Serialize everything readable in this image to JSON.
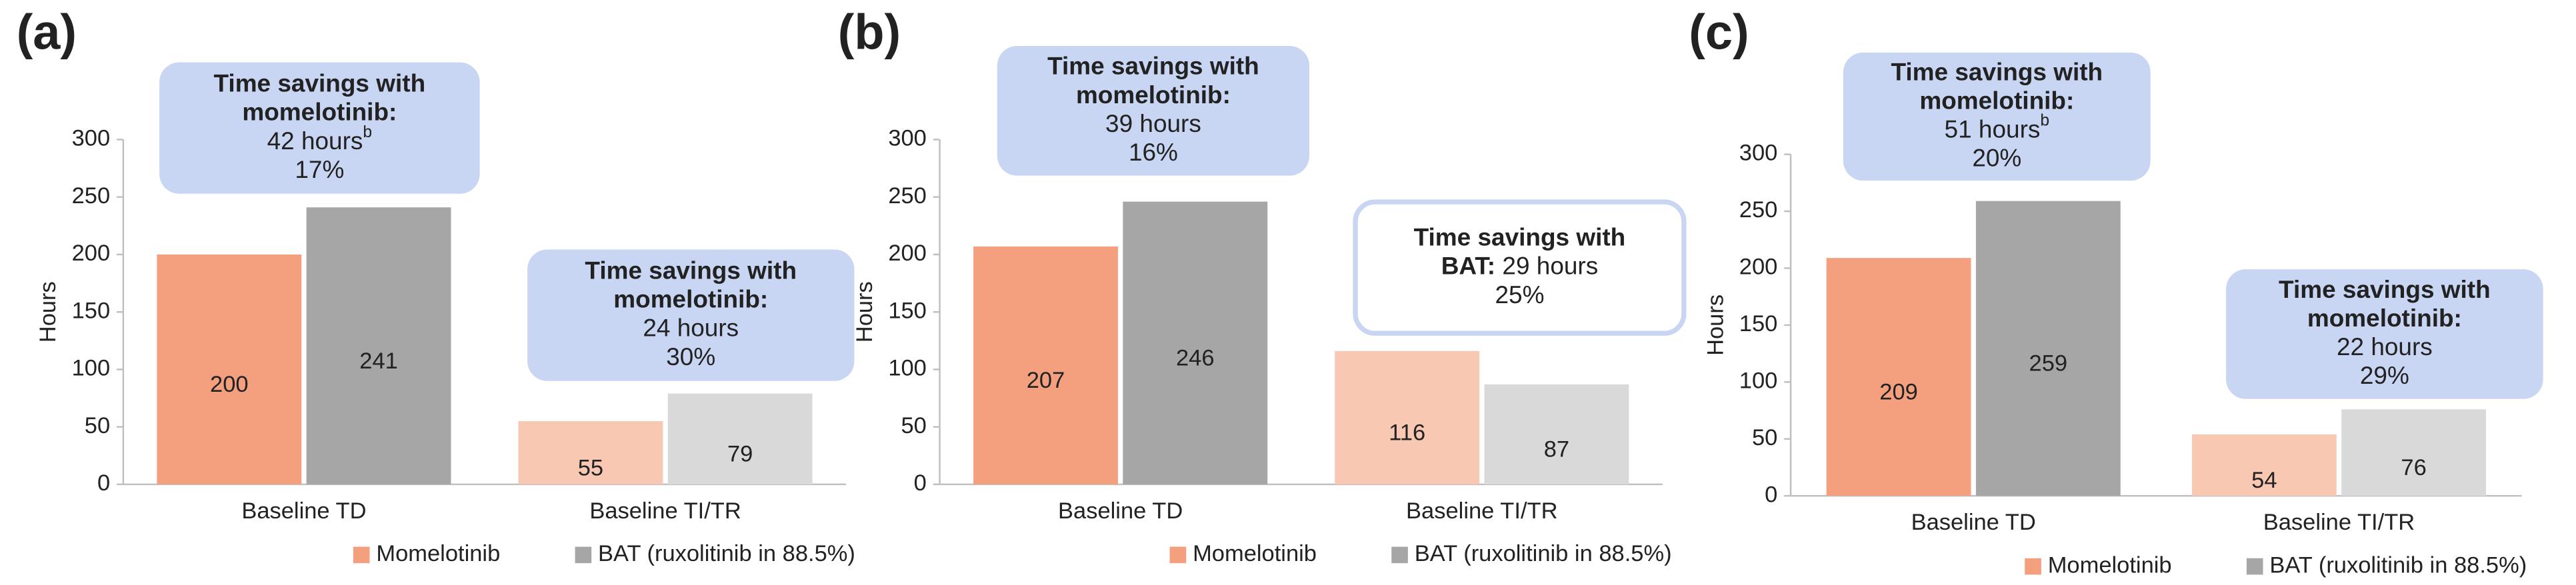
{
  "chart_data": [
    {
      "type": "bar",
      "panel_label": "(a)",
      "y_label": "Hours",
      "categories": [
        "Baseline TD",
        "Baseline TI/TR"
      ],
      "ylim": [
        0,
        300
      ],
      "yticks": [
        0,
        50,
        100,
        150,
        200,
        250,
        300
      ],
      "series": [
        {
          "name": "Momelotinib",
          "color": "#f4a07f",
          "colors": [
            "#f4a07f",
            "#f9c8b3"
          ],
          "values": [
            200,
            55
          ]
        },
        {
          "name": "BAT (ruxolitinib in 88.5%)",
          "color": "#a6a6a6",
          "colors": [
            "#a6a6a6",
            "#d9d9d9"
          ],
          "values": [
            241,
            79
          ]
        }
      ],
      "annotations": [
        {
          "heading": [
            "Time savings with",
            "momelotinib:"
          ],
          "body": [
            "42 hours",
            "17%"
          ],
          "sup": "b"
        },
        {
          "heading": [
            "Time savings with",
            "momelotinib:"
          ],
          "body": [
            "24 hours",
            "30%"
          ]
        }
      ]
    },
    {
      "type": "bar",
      "panel_label": "(b)",
      "y_label": "Hours",
      "categories": [
        "Baseline TD",
        "Baseline TI/TR"
      ],
      "ylim": [
        0,
        300
      ],
      "yticks": [
        0,
        50,
        100,
        150,
        200,
        250,
        300
      ],
      "series": [
        {
          "name": "Momelotinib",
          "color": "#f4a07f",
          "colors": [
            "#f4a07f",
            "#f9c8b3"
          ],
          "values": [
            207,
            116
          ]
        },
        {
          "name": "BAT (ruxolitinib in 88.5%)",
          "color": "#a6a6a6",
          "colors": [
            "#a6a6a6",
            "#d9d9d9"
          ],
          "values": [
            246,
            87
          ]
        }
      ],
      "annotations": [
        {
          "heading": [
            "Time savings with",
            "momelotinib:"
          ],
          "body": [
            "39 hours",
            "16%"
          ]
        },
        {
          "heading": [
            "Time savings with",
            "BAT:"
          ],
          "body": [
            "29 hours",
            "25%"
          ],
          "inline": true,
          "outline": true
        }
      ]
    },
    {
      "type": "bar",
      "panel_label": "(c)",
      "y_label": "Hours",
      "categories": [
        "Baseline TD",
        "Baseline TI/TR"
      ],
      "ylim": [
        0,
        300
      ],
      "yticks": [
        0,
        50,
        100,
        150,
        200,
        250,
        300
      ],
      "series": [
        {
          "name": "Momelotinib",
          "color": "#f4a07f",
          "colors": [
            "#f4a07f",
            "#f9c8b3"
          ],
          "values": [
            209,
            54
          ]
        },
        {
          "name": "BAT (ruxolitinib in 88.5%)",
          "color": "#a6a6a6",
          "colors": [
            "#a6a6a6",
            "#d9d9d9"
          ],
          "values": [
            259,
            76
          ]
        }
      ],
      "annotations": [
        {
          "heading": [
            "Time savings with",
            "momelotinib:"
          ],
          "body": [
            "51 hours",
            "20%"
          ],
          "sup": "b"
        },
        {
          "heading": [
            "Time savings with",
            "momelotinib:"
          ],
          "body": [
            "22 hours",
            "29%"
          ]
        }
      ]
    }
  ]
}
